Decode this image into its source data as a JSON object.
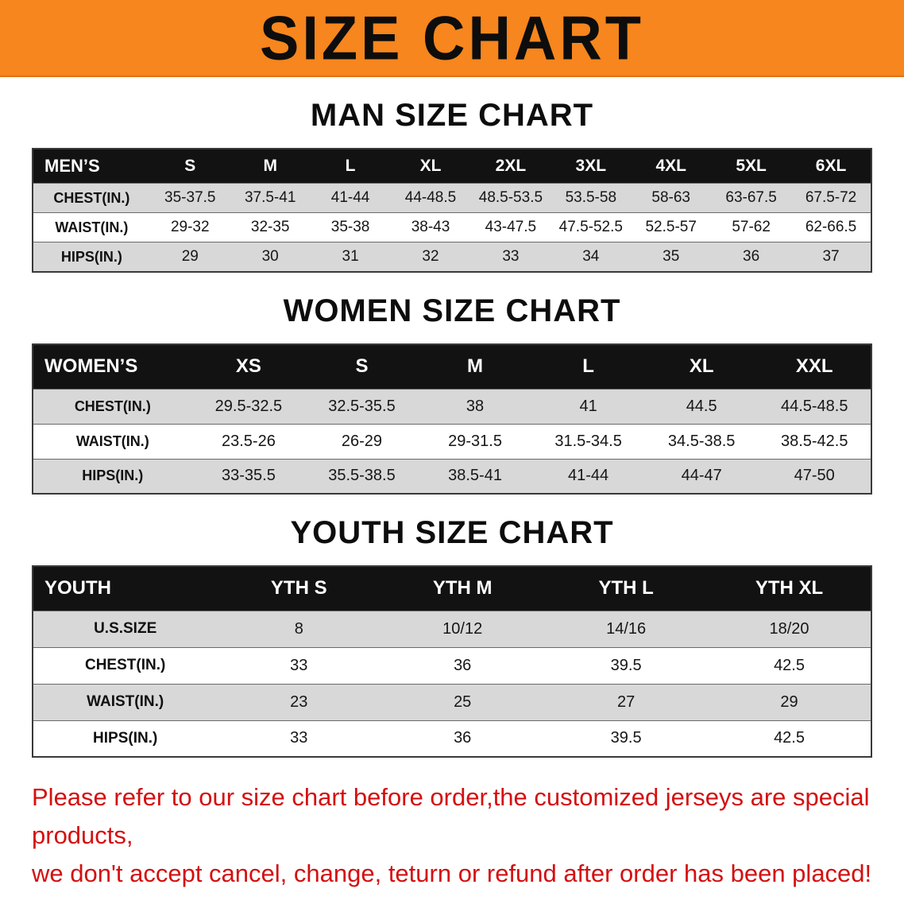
{
  "banner": {
    "title": "SIZE CHART",
    "bg_color": "#f6861d"
  },
  "sections": [
    {
      "title": "MAN SIZE CHART",
      "header": [
        "MEN’S",
        "S",
        "M",
        "L",
        "XL",
        "2XL",
        "3XL",
        "4XL",
        "5XL",
        "6XL"
      ],
      "rows": [
        {
          "label": "CHEST(IN.)",
          "values": [
            "35-37.5",
            "37.5-41",
            "41-44",
            "44-48.5",
            "48.5-53.5",
            "53.5-58",
            "58-63",
            "63-67.5",
            "67.5-72"
          ]
        },
        {
          "label": "WAIST(IN.)",
          "values": [
            "29-32",
            "32-35",
            "35-38",
            "38-43",
            "43-47.5",
            "47.5-52.5",
            "52.5-57",
            "57-62",
            "62-66.5"
          ]
        },
        {
          "label": "HIPS(IN.)",
          "values": [
            "29",
            "30",
            "31",
            "32",
            "33",
            "34",
            "35",
            "36",
            "37"
          ]
        }
      ]
    },
    {
      "title": "WOMEN SIZE CHART",
      "header": [
        "WOMEN’S",
        "XS",
        "S",
        "M",
        "L",
        "XL",
        "XXL"
      ],
      "rows": [
        {
          "label": "CHEST(IN.)",
          "values": [
            "29.5-32.5",
            "32.5-35.5",
            "38",
            "41",
            "44.5",
            "44.5-48.5"
          ]
        },
        {
          "label": "WAIST(IN.)",
          "values": [
            "23.5-26",
            "26-29",
            "29-31.5",
            "31.5-34.5",
            "34.5-38.5",
            "38.5-42.5"
          ]
        },
        {
          "label": "HIPS(IN.)",
          "values": [
            "33-35.5",
            "35.5-38.5",
            "38.5-41",
            "41-44",
            "44-47",
            "47-50"
          ]
        }
      ]
    },
    {
      "title": "YOUTH SIZE CHART",
      "header": [
        "YOUTH",
        "YTH S",
        "YTH M",
        "YTH L",
        "YTH XL"
      ],
      "rows": [
        {
          "label": "U.S.SIZE",
          "values": [
            "8",
            "10/12",
            "14/16",
            "18/20"
          ]
        },
        {
          "label": "CHEST(IN.)",
          "values": [
            "33",
            "36",
            "39.5",
            "42.5"
          ]
        },
        {
          "label": "WAIST(IN.)",
          "values": [
            "23",
            "25",
            "27",
            "29"
          ]
        },
        {
          "label": "HIPS(IN.)",
          "values": [
            "33",
            "36",
            "39.5",
            "42.5"
          ]
        }
      ]
    }
  ],
  "footer": {
    "line1": "Please refer to our size chart before order,the customized jerseys are special products,",
    "line2": "we don't accept cancel, change, teturn or refund after order has been placed!"
  },
  "colors": {
    "banner_orange": "#f6861d",
    "header_black": "#121212",
    "stripe_gray": "#d8d8d8",
    "notice_red": "#d40f10"
  }
}
